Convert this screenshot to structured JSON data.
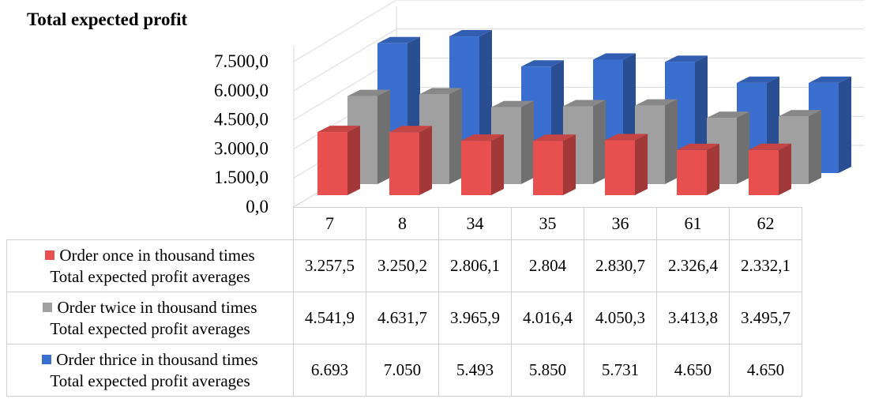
{
  "chart_data": {
    "type": "bar",
    "title": "Total expected profit",
    "categories": [
      "7",
      "8",
      "34",
      "35",
      "36",
      "61",
      "62"
    ],
    "y_ticks": [
      "7.500,0",
      "6.000,0",
      "4.500,0",
      "3.000,0",
      "1.500,0",
      "0,0"
    ],
    "ylim": [
      0,
      7500
    ],
    "series": [
      {
        "name_line1": "Order once in thousand times",
        "name_line2": "Total expected profit averages",
        "color": "#e85050",
        "values": [
          3257.5,
          3250.2,
          2806.1,
          2804,
          2830.7,
          2326.4,
          2332.1
        ],
        "labels": [
          "3.257,5",
          "3.250,2",
          "2.806,1",
          "2.804",
          "2.830,7",
          "2.326,4",
          "2.332,1"
        ]
      },
      {
        "name_line1": "Order twice in thousand times",
        "name_line2": "Total expected profit averages",
        "color": "#a0a0a0",
        "values": [
          4541.9,
          4631.7,
          3965.9,
          4016.4,
          4050.3,
          3413.8,
          3495.7
        ],
        "labels": [
          "4.541,9",
          "4.631,7",
          "3.965,9",
          "4.016,4",
          "4.050,3",
          "3.413,8",
          "3.495,7"
        ]
      },
      {
        "name_line1": "Order thrice  in thousand times",
        "name_line2": "Total expected profit averages",
        "color": "#3a6fd0",
        "values": [
          6693,
          7050,
          5493,
          5850,
          5731,
          4650,
          4650
        ],
        "labels": [
          "6.693",
          "7.050",
          "5.493",
          "5.850",
          "5.731",
          "4.650",
          "4.650"
        ]
      }
    ]
  }
}
